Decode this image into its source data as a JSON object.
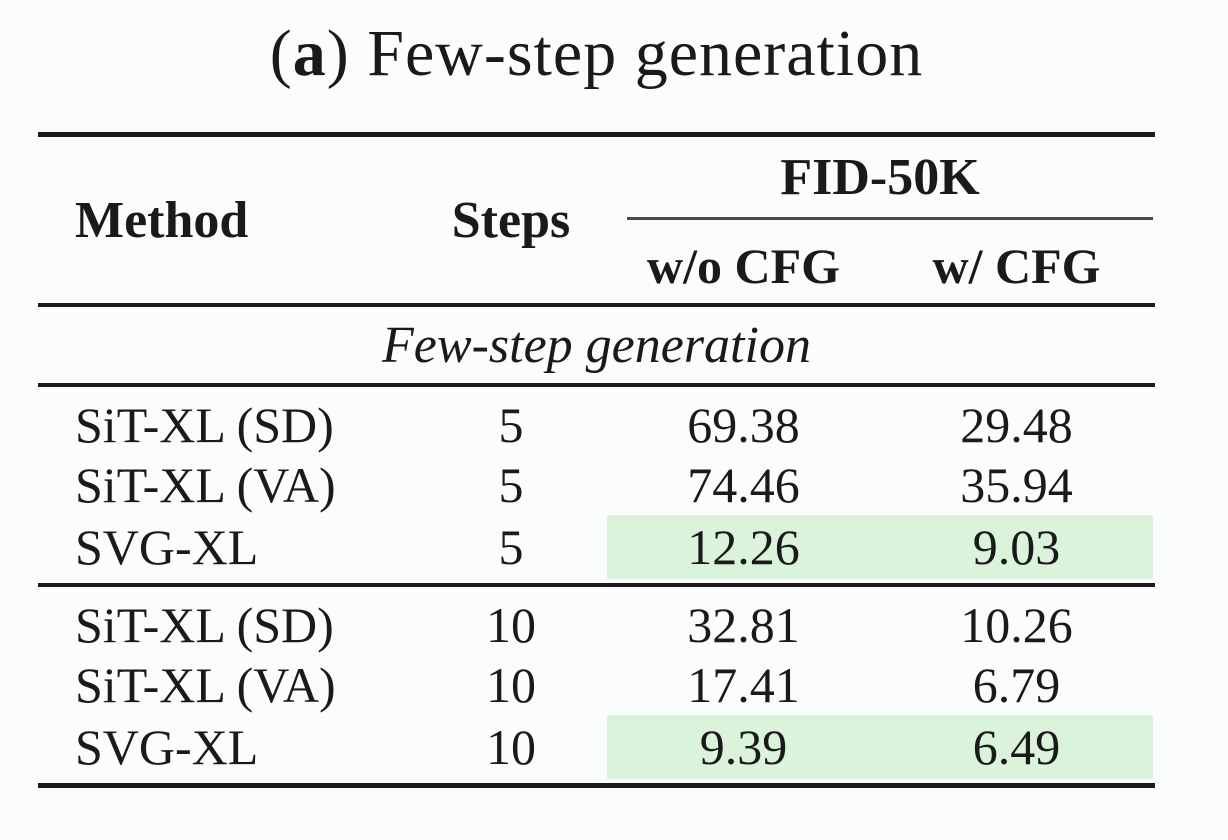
{
  "title": {
    "paren_open": "(",
    "index": "a",
    "paren_close": ")",
    "text": " Few-step generation"
  },
  "table": {
    "header": {
      "method": "Method",
      "steps": "Steps",
      "fid_group": "FID-50K",
      "without_cfg": "w/o CFG",
      "with_cfg": "w/ CFG"
    },
    "section_label": "Few-step generation",
    "rows": [
      {
        "method": "SiT-XL (SD)",
        "steps": "5",
        "fid_wo_cfg": "69.38",
        "fid_w_cfg": "29.48"
      },
      {
        "method": "SiT-XL (VA)",
        "steps": "5",
        "fid_wo_cfg": "74.46",
        "fid_w_cfg": "35.94"
      },
      {
        "method": "SVG-XL",
        "steps": "5",
        "fid_wo_cfg": "12.26",
        "fid_w_cfg": "9.03"
      },
      {
        "method": "SiT-XL (SD)",
        "steps": "10",
        "fid_wo_cfg": "32.81",
        "fid_w_cfg": "10.26"
      },
      {
        "method": "SiT-XL (VA)",
        "steps": "10",
        "fid_wo_cfg": "17.41",
        "fid_w_cfg": "6.79"
      },
      {
        "method": "SVG-XL",
        "steps": "10",
        "fid_wo_cfg": "9.39",
        "fid_w_cfg": "6.49"
      }
    ]
  },
  "colors": {
    "highlight_green": "#dbf3db",
    "background": "#fafcfe",
    "text": "#1a1a1a",
    "rule": "#1b1b1d"
  },
  "chart_data": {
    "type": "table",
    "title": "(a) Few-step generation",
    "columns": [
      "Method",
      "Steps",
      "FID-50K w/o CFG",
      "FID-50K w/ CFG"
    ],
    "section": "Few-step generation",
    "rows": [
      [
        "SiT-XL (SD)",
        5,
        69.38,
        29.48
      ],
      [
        "SiT-XL (VA)",
        5,
        74.46,
        35.94
      ],
      [
        "SVG-XL",
        5,
        12.26,
        9.03
      ],
      [
        "SiT-XL (SD)",
        10,
        32.81,
        10.26
      ],
      [
        "SiT-XL (VA)",
        10,
        17.41,
        6.79
      ],
      [
        "SVG-XL",
        10,
        9.39,
        6.49
      ]
    ],
    "highlighted_rows": [
      2,
      5
    ],
    "highlighted_columns": [
      "FID-50K w/o CFG",
      "FID-50K w/ CFG"
    ]
  }
}
